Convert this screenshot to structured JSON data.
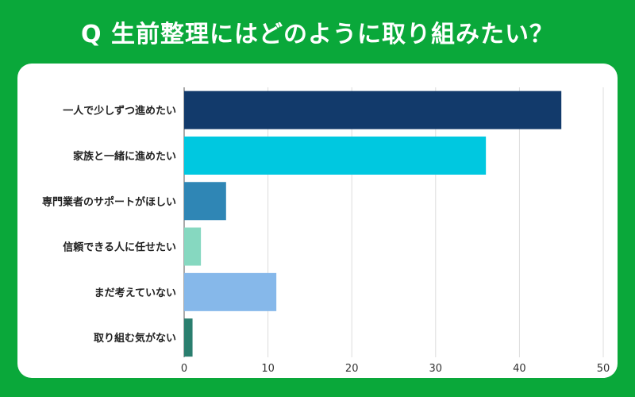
{
  "title": "Q 生前整理にはどのように取り組みたい？",
  "chart_data": {
    "type": "bar",
    "orientation": "horizontal",
    "title": "Q 生前整理にはどのように取り組みたい？",
    "categories": [
      "一人で少しずつ進めたい",
      "家族と一緒に進めたい",
      "専門業者のサポートがほしい",
      "信頼できる人に任せたい",
      "まだ考えていない",
      "取り組む気がない"
    ],
    "values": [
      45,
      36,
      5,
      2,
      11,
      1
    ],
    "colors": [
      "#123a6b",
      "#00c8e0",
      "#2f86b5",
      "#86d8c0",
      "#86b8ea",
      "#2a7e6e"
    ],
    "xlim": [
      0,
      50
    ],
    "xticks": [
      0,
      10,
      20,
      30,
      40,
      50
    ],
    "grid": true,
    "xlabel": "",
    "ylabel": ""
  }
}
